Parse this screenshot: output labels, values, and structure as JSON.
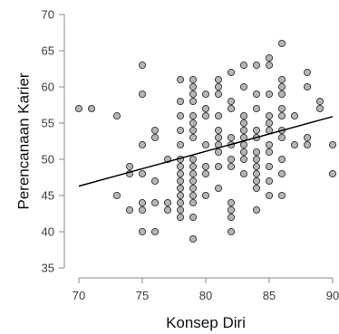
{
  "chart_data": {
    "type": "scatter",
    "xlabel": "Konsep Diri",
    "ylabel": "Perencanaan Karier",
    "xlim": [
      70,
      90
    ],
    "ylim": [
      35,
      70
    ],
    "x_ticks": [
      70,
      75,
      80,
      85,
      90
    ],
    "y_ticks": [
      35,
      40,
      45,
      50,
      55,
      60,
      65,
      70
    ],
    "grid": false,
    "colors": {
      "point_fill": "#b5b5b5",
      "point_stroke": "#333333",
      "fit_line": "#000000"
    },
    "fit_line": {
      "x": [
        70,
        90
      ],
      "y": [
        46.3,
        55.9
      ]
    },
    "points": [
      [
        70,
        57
      ],
      [
        71,
        57
      ],
      [
        73,
        56
      ],
      [
        73,
        45
      ],
      [
        74,
        49
      ],
      [
        74,
        48
      ],
      [
        74,
        43
      ],
      [
        75,
        63
      ],
      [
        75,
        59
      ],
      [
        75,
        52
      ],
      [
        75,
        48
      ],
      [
        75,
        44
      ],
      [
        75,
        43
      ],
      [
        75,
        40
      ],
      [
        76,
        54
      ],
      [
        76,
        53
      ],
      [
        76,
        47
      ],
      [
        76,
        44
      ],
      [
        76,
        40
      ],
      [
        77,
        50
      ],
      [
        77,
        44
      ],
      [
        77,
        43
      ],
      [
        78,
        61
      ],
      [
        78,
        58
      ],
      [
        78,
        56
      ],
      [
        78,
        54
      ],
      [
        78,
        52
      ],
      [
        78,
        50
      ],
      [
        78,
        49
      ],
      [
        78,
        48
      ],
      [
        78,
        47
      ],
      [
        78,
        46
      ],
      [
        78,
        45
      ],
      [
        78,
        44
      ],
      [
        78,
        43
      ],
      [
        78,
        42
      ],
      [
        79,
        61
      ],
      [
        79,
        60
      ],
      [
        79,
        59
      ],
      [
        79,
        58
      ],
      [
        79,
        56
      ],
      [
        79,
        55
      ],
      [
        79,
        54
      ],
      [
        79,
        53
      ],
      [
        79,
        50
      ],
      [
        79,
        49
      ],
      [
        79,
        48
      ],
      [
        79,
        47
      ],
      [
        79,
        46
      ],
      [
        79,
        45
      ],
      [
        79,
        44
      ],
      [
        79,
        42
      ],
      [
        79,
        39
      ],
      [
        80,
        59
      ],
      [
        80,
        57
      ],
      [
        80,
        56
      ],
      [
        80,
        52
      ],
      [
        80,
        49
      ],
      [
        80,
        48
      ],
      [
        80,
        45
      ],
      [
        81,
        61
      ],
      [
        81,
        60
      ],
      [
        81,
        59
      ],
      [
        81,
        56
      ],
      [
        81,
        54
      ],
      [
        81,
        53
      ],
      [
        81,
        52
      ],
      [
        81,
        51
      ],
      [
        81,
        49
      ],
      [
        81,
        46
      ],
      [
        82,
        62
      ],
      [
        82,
        58
      ],
      [
        82,
        57
      ],
      [
        82,
        53
      ],
      [
        82,
        52
      ],
      [
        82,
        50
      ],
      [
        82,
        49
      ],
      [
        82,
        44
      ],
      [
        82,
        43
      ],
      [
        82,
        42
      ],
      [
        82,
        40
      ],
      [
        83,
        63
      ],
      [
        83,
        60
      ],
      [
        83,
        56
      ],
      [
        83,
        55
      ],
      [
        83,
        54
      ],
      [
        83,
        53
      ],
      [
        83,
        52
      ],
      [
        83,
        51
      ],
      [
        83,
        50
      ],
      [
        83,
        48
      ],
      [
        84,
        63
      ],
      [
        84,
        59
      ],
      [
        84,
        57
      ],
      [
        84,
        54
      ],
      [
        84,
        53
      ],
      [
        84,
        51
      ],
      [
        84,
        50
      ],
      [
        84,
        49
      ],
      [
        84,
        48
      ],
      [
        84,
        47
      ],
      [
        84,
        46
      ],
      [
        84,
        43
      ],
      [
        85,
        64
      ],
      [
        85,
        63
      ],
      [
        85,
        59
      ],
      [
        85,
        56
      ],
      [
        85,
        55
      ],
      [
        85,
        54
      ],
      [
        85,
        52
      ],
      [
        85,
        51
      ],
      [
        85,
        49
      ],
      [
        85,
        47
      ],
      [
        85,
        45
      ],
      [
        86,
        66
      ],
      [
        86,
        61
      ],
      [
        86,
        60
      ],
      [
        86,
        59
      ],
      [
        86,
        57
      ],
      [
        86,
        56
      ],
      [
        86,
        54
      ],
      [
        86,
        53
      ],
      [
        86,
        50
      ],
      [
        86,
        48
      ],
      [
        86,
        45
      ],
      [
        87,
        56
      ],
      [
        87,
        52
      ],
      [
        88,
        62
      ],
      [
        88,
        60
      ],
      [
        88,
        53
      ],
      [
        88,
        52
      ],
      [
        89,
        58
      ],
      [
        89,
        57
      ],
      [
        90,
        52
      ],
      [
        90,
        48
      ]
    ]
  }
}
